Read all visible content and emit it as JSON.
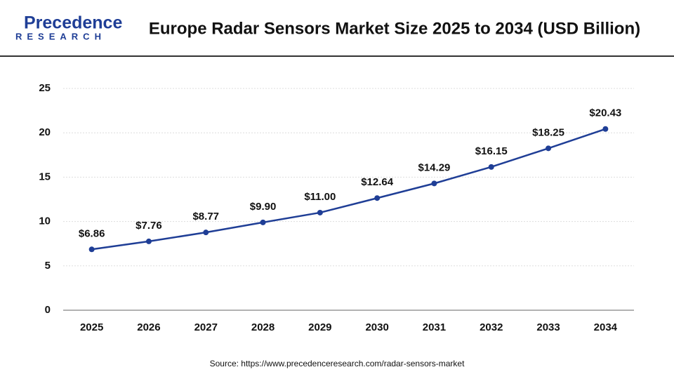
{
  "logo": {
    "name": "Precedence",
    "tagline": "RESEARCH"
  },
  "chart_data": {
    "type": "line",
    "title": "Europe Radar Sensors Market Size 2025 to 2034 (USD Billion)",
    "categories": [
      "2025",
      "2026",
      "2027",
      "2028",
      "2029",
      "2030",
      "2031",
      "2032",
      "2033",
      "2034"
    ],
    "series": [
      {
        "name": "Europe Radar Sensors Market Size",
        "color": "#1f3e96",
        "values": [
          6.86,
          7.76,
          8.77,
          9.9,
          11.0,
          12.64,
          14.29,
          16.15,
          18.25,
          20.43
        ],
        "value_labels": [
          "$6.86",
          "$7.76",
          "$8.77",
          "$9.90",
          "$11.00",
          "$12.64",
          "$14.29",
          "$16.15",
          "$18.25",
          "$20.43"
        ]
      }
    ],
    "ylim": [
      0,
      25
    ],
    "yticks": [
      0,
      5,
      10,
      15,
      20,
      25
    ],
    "grid": true,
    "source": "Source: https://www.precedenceresearch.com/radar-sensors-market"
  }
}
